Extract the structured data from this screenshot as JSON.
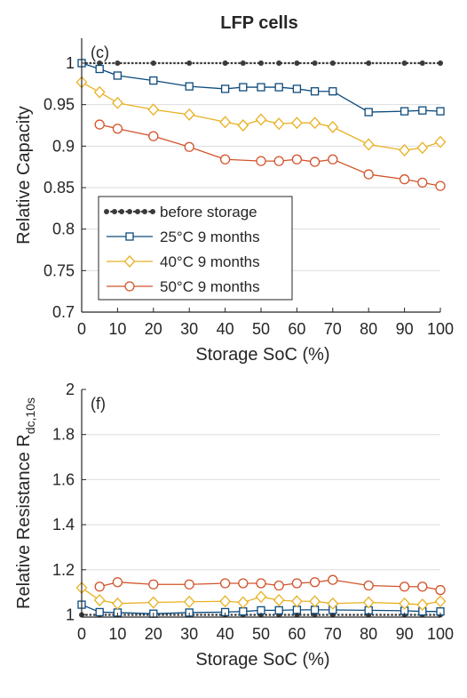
{
  "figure_title": "LFP cells",
  "chart_data": [
    {
      "type": "line",
      "panel_label": "(c)",
      "title": "LFP cells",
      "xlabel": "Storage SoC (%)",
      "ylabel": "Relative Capacity",
      "xlim": [
        0,
        100
      ],
      "ylim": [
        0.7,
        1.03
      ],
      "xticks": [
        0,
        10,
        20,
        30,
        40,
        50,
        60,
        70,
        80,
        90,
        100
      ],
      "xtick_labels": [
        "0",
        "10",
        "20",
        "30",
        "40",
        "50",
        "60",
        "70",
        "80",
        "90",
        "100"
      ],
      "yticks": [
        0.7,
        0.75,
        0.8,
        0.85,
        0.9,
        0.95,
        1
      ],
      "ytick_labels": [
        "0.7",
        "0.75",
        "0.8",
        "0.85",
        "0.9",
        "0.95",
        "1"
      ],
      "grid": "horizontal",
      "legend_position": "lower-left",
      "series": [
        {
          "name": "before storage",
          "color": "#3a3a3a",
          "marker": "dot",
          "style": "dotted",
          "x": [
            0,
            5,
            10,
            20,
            30,
            40,
            45,
            50,
            55,
            60,
            65,
            70,
            80,
            90,
            95,
            100
          ],
          "y": [
            1,
            1,
            1,
            1,
            1,
            1,
            1,
            1,
            1,
            1,
            1,
            1,
            1,
            1,
            1,
            1
          ]
        },
        {
          "name": "25°C  9 months",
          "color": "#0c4a7c",
          "marker": "square",
          "style": "solid",
          "x": [
            0,
            5,
            10,
            20,
            30,
            40,
            45,
            50,
            55,
            60,
            65,
            70,
            80,
            90,
            95,
            100
          ],
          "y": [
            1.0,
            0.993,
            0.985,
            0.979,
            0.972,
            0.969,
            0.971,
            0.971,
            0.971,
            0.969,
            0.966,
            0.966,
            0.941,
            0.942,
            0.943,
            0.942
          ]
        },
        {
          "name": "40°C  9 months",
          "color": "#e8b123",
          "marker": "diamond",
          "style": "solid",
          "x": [
            0,
            5,
            10,
            20,
            30,
            40,
            45,
            50,
            55,
            60,
            65,
            70,
            80,
            90,
            95,
            100
          ],
          "y": [
            0.977,
            0.965,
            0.952,
            0.944,
            0.938,
            0.929,
            0.925,
            0.932,
            0.927,
            0.928,
            0.928,
            0.923,
            0.902,
            0.895,
            0.898,
            0.905
          ]
        },
        {
          "name": "50°C  9 months",
          "color": "#d3532a",
          "marker": "circle",
          "style": "solid",
          "x": [
            5,
            10,
            20,
            30,
            40,
            50,
            55,
            60,
            65,
            70,
            80,
            90,
            95,
            100
          ],
          "y": [
            0.926,
            0.921,
            0.912,
            0.899,
            0.884,
            0.882,
            0.882,
            0.884,
            0.881,
            0.884,
            0.866,
            0.86,
            0.856,
            0.852
          ]
        }
      ]
    },
    {
      "type": "line",
      "panel_label": "(f)",
      "xlabel": "Storage SoC (%)",
      "ylabel": "Relative Resistance  R",
      "ylabel_subscript": "dc,10s",
      "xlim": [
        0,
        100
      ],
      "ylim": [
        0.99,
        2
      ],
      "xticks": [
        0,
        10,
        20,
        30,
        40,
        50,
        60,
        70,
        80,
        90,
        100
      ],
      "xtick_labels": [
        "0",
        "10",
        "20",
        "30",
        "40",
        "50",
        "60",
        "70",
        "80",
        "90",
        "100"
      ],
      "yticks": [
        1,
        1.2,
        1.4,
        1.6,
        1.8,
        2
      ],
      "ytick_labels": [
        "1",
        "1.2",
        "1.4",
        "1.6",
        "1.8",
        "2"
      ],
      "grid": "horizontal",
      "series": [
        {
          "name": "before storage",
          "color": "#3a3a3a",
          "marker": "dot",
          "style": "dotted",
          "x": [
            0,
            5,
            10,
            20,
            30,
            40,
            45,
            50,
            55,
            60,
            65,
            70,
            80,
            90,
            95,
            100
          ],
          "y": [
            1,
            1,
            1,
            1,
            1,
            1,
            1,
            1,
            1,
            1,
            1,
            1,
            1,
            1,
            1,
            1
          ]
        },
        {
          "name": "25°C  9 months",
          "color": "#0c4a7c",
          "marker": "square",
          "style": "solid",
          "x": [
            0,
            5,
            10,
            20,
            30,
            40,
            45,
            50,
            55,
            60,
            65,
            70,
            80,
            90,
            95,
            100
          ],
          "y": [
            1.045,
            1.012,
            1.01,
            1.005,
            1.01,
            1.012,
            1.015,
            1.02,
            1.02,
            1.022,
            1.022,
            1.022,
            1.02,
            1.018,
            1.015,
            1.015
          ]
        },
        {
          "name": "40°C  9 months",
          "color": "#e8b123",
          "marker": "diamond",
          "style": "solid",
          "x": [
            0,
            5,
            10,
            20,
            30,
            40,
            45,
            50,
            55,
            60,
            65,
            70,
            80,
            90,
            95,
            100
          ],
          "y": [
            1.12,
            1.065,
            1.05,
            1.055,
            1.058,
            1.06,
            1.055,
            1.08,
            1.065,
            1.06,
            1.06,
            1.05,
            1.055,
            1.05,
            1.045,
            1.06
          ]
        },
        {
          "name": "50°C  9 months",
          "color": "#d3532a",
          "marker": "circle",
          "style": "solid",
          "x": [
            5,
            10,
            20,
            30,
            40,
            45,
            50,
            55,
            60,
            65,
            70,
            80,
            90,
            95,
            100
          ],
          "y": [
            1.125,
            1.145,
            1.135,
            1.135,
            1.14,
            1.14,
            1.14,
            1.13,
            1.14,
            1.145,
            1.155,
            1.13,
            1.125,
            1.125,
            1.11
          ]
        }
      ]
    }
  ]
}
